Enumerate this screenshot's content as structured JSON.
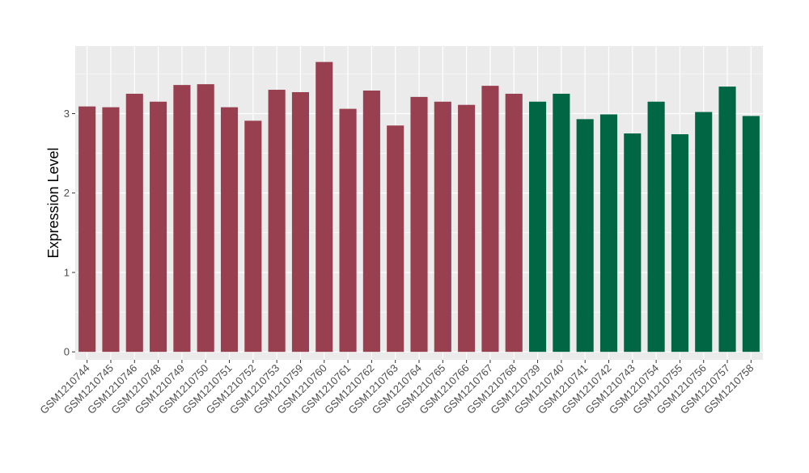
{
  "chart_data": {
    "type": "bar",
    "title": "",
    "xlabel": "",
    "ylabel": "Expression Level",
    "ylim": [
      -0.1,
      3.85
    ],
    "yticks": [
      0,
      1,
      2,
      3
    ],
    "grid": true,
    "legend": "none",
    "panel_color": "#ebebeb",
    "grid_color": "#ffffff",
    "categories": [
      "GSM1210744",
      "GSM1210745",
      "GSM1210746",
      "GSM1210748",
      "GSM1210749",
      "GSM1210750",
      "GSM1210751",
      "GSM1210752",
      "GSM1210753",
      "GSM1210759",
      "GSM1210760",
      "GSM1210761",
      "GSM1210762",
      "GSM1210763",
      "GSM1210764",
      "GSM1210765",
      "GSM1210766",
      "GSM1210767",
      "GSM1210768",
      "GSM1210739",
      "GSM1210740",
      "GSM1210741",
      "GSM1210742",
      "GSM1210743",
      "GSM1210754",
      "GSM1210755",
      "GSM1210756",
      "GSM1210757",
      "GSM1210758"
    ],
    "values": [
      3.09,
      3.08,
      3.25,
      3.15,
      3.36,
      3.37,
      3.08,
      2.91,
      3.3,
      3.27,
      3.65,
      3.06,
      3.29,
      2.85,
      3.21,
      3.15,
      3.11,
      3.35,
      3.25,
      3.15,
      3.25,
      2.93,
      2.99,
      2.75,
      3.15,
      2.74,
      3.02,
      3.34,
      2.97
    ],
    "groups": [
      "A",
      "A",
      "A",
      "A",
      "A",
      "A",
      "A",
      "A",
      "A",
      "A",
      "A",
      "A",
      "A",
      "A",
      "A",
      "A",
      "A",
      "A",
      "A",
      "B",
      "B",
      "B",
      "B",
      "B",
      "B",
      "B",
      "B",
      "B",
      "B"
    ],
    "group_colors": {
      "A": "#98404f",
      "B": "#006644"
    }
  }
}
